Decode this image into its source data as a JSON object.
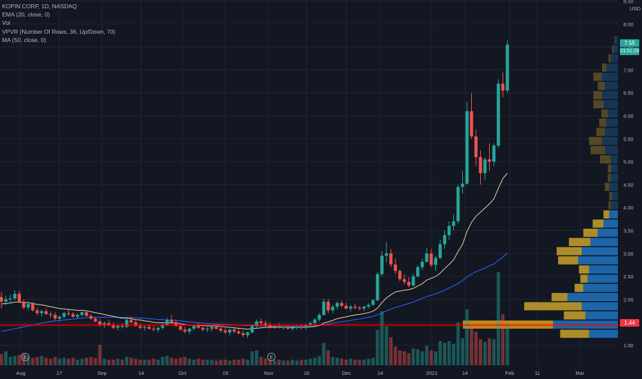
{
  "legend": {
    "symbol": "KOPIN CORP, 1D, NASDAQ",
    "ema": "EMA (20, close, 0)",
    "vol": "Vol",
    "vpvr": "VPVR (Number Of Rows, 36, Up/Down, 70)",
    "ma": "MA (50, close, 0)"
  },
  "currency": "USD",
  "last_price_label": "7.55",
  "countdown_label": "01:51:29",
  "hline_label": "1.44",
  "earnings_marker": "E",
  "colors": {
    "background": "#131722",
    "up": "#26a69a",
    "down": "#ef5350",
    "ema": "#e8d8a8",
    "ma": "#2962ff",
    "hline": "#ff0000",
    "vp_up": "#1e6fb8",
    "vp_down": "#c8a22b"
  },
  "chart_data": {
    "type": "candlestick",
    "title": "KOPIN CORP, 1D, NASDAQ",
    "ylim": [
      0.6,
      8.5
    ],
    "y_ticks": [
      "1.00",
      "1.50",
      "2.00",
      "2.50",
      "3.00",
      "3.50",
      "4.00",
      "4.50",
      "5.00",
      "5.50",
      "6.00",
      "6.50",
      "7.00",
      "7.50",
      "8.00",
      "8.50"
    ],
    "x_ticks": [
      "Aug",
      "17",
      "Sep",
      "14",
      "Oct",
      "19",
      "Nov",
      "16",
      "Dec",
      "14",
      "2021",
      "14",
      "Feb",
      "11",
      "Mar"
    ],
    "grid": true,
    "horizontal_line": 1.44,
    "earnings_events": [
      "2020-08-05",
      "2020-11-04"
    ],
    "candles": [
      [
        2.05,
        2.16,
        1.8,
        1.95
      ],
      [
        1.95,
        2.08,
        1.87,
        2.0
      ],
      [
        2.0,
        2.1,
        1.9,
        2.02
      ],
      [
        2.02,
        2.2,
        1.98,
        2.12
      ],
      [
        2.12,
        2.18,
        1.92,
        1.95
      ],
      [
        1.95,
        2.0,
        1.78,
        1.82
      ],
      [
        1.82,
        1.95,
        1.76,
        1.9
      ],
      [
        1.9,
        1.94,
        1.74,
        1.76
      ],
      [
        1.76,
        1.82,
        1.65,
        1.7
      ],
      [
        1.7,
        1.78,
        1.62,
        1.74
      ],
      [
        1.74,
        1.8,
        1.66,
        1.68
      ],
      [
        1.68,
        1.74,
        1.6,
        1.66
      ],
      [
        1.66,
        1.72,
        1.55,
        1.58
      ],
      [
        1.58,
        1.64,
        1.52,
        1.62
      ],
      [
        1.62,
        1.72,
        1.58,
        1.7
      ],
      [
        1.7,
        1.78,
        1.64,
        1.68
      ],
      [
        1.68,
        1.72,
        1.6,
        1.62
      ],
      [
        1.62,
        1.7,
        1.58,
        1.66
      ],
      [
        1.66,
        1.74,
        1.62,
        1.72
      ],
      [
        1.72,
        1.76,
        1.62,
        1.64
      ],
      [
        1.64,
        1.68,
        1.55,
        1.58
      ],
      [
        1.58,
        1.62,
        1.5,
        1.52
      ],
      [
        1.52,
        1.58,
        1.4,
        1.45
      ],
      [
        1.45,
        1.52,
        1.38,
        1.48
      ],
      [
        1.48,
        1.55,
        1.42,
        1.44
      ],
      [
        1.44,
        1.5,
        1.35,
        1.38
      ],
      [
        1.38,
        1.46,
        1.32,
        1.42
      ],
      [
        1.42,
        1.48,
        1.36,
        1.4
      ],
      [
        1.4,
        1.58,
        1.38,
        1.55
      ],
      [
        1.55,
        1.62,
        1.48,
        1.5
      ],
      [
        1.5,
        1.56,
        1.4,
        1.42
      ],
      [
        1.42,
        1.48,
        1.35,
        1.38
      ],
      [
        1.38,
        1.44,
        1.32,
        1.4
      ],
      [
        1.4,
        1.46,
        1.34,
        1.36
      ],
      [
        1.36,
        1.42,
        1.3,
        1.34
      ],
      [
        1.34,
        1.4,
        1.28,
        1.38
      ],
      [
        1.38,
        1.48,
        1.34,
        1.45
      ],
      [
        1.45,
        1.6,
        1.42,
        1.55
      ],
      [
        1.55,
        1.66,
        1.46,
        1.5
      ],
      [
        1.5,
        1.56,
        1.4,
        1.42
      ],
      [
        1.42,
        1.48,
        1.32,
        1.34
      ],
      [
        1.34,
        1.4,
        1.26,
        1.3
      ],
      [
        1.3,
        1.38,
        1.24,
        1.36
      ],
      [
        1.36,
        1.46,
        1.32,
        1.42
      ],
      [
        1.42,
        1.5,
        1.36,
        1.38
      ],
      [
        1.38,
        1.44,
        1.3,
        1.34
      ],
      [
        1.34,
        1.4,
        1.28,
        1.36
      ],
      [
        1.36,
        1.44,
        1.3,
        1.4
      ],
      [
        1.4,
        1.46,
        1.34,
        1.36
      ],
      [
        1.36,
        1.42,
        1.28,
        1.32
      ],
      [
        1.32,
        1.38,
        1.24,
        1.28
      ],
      [
        1.28,
        1.36,
        1.22,
        1.34
      ],
      [
        1.34,
        1.4,
        1.26,
        1.3
      ],
      [
        1.3,
        1.36,
        1.24,
        1.26
      ],
      [
        1.26,
        1.32,
        1.18,
        1.22
      ],
      [
        1.22,
        1.3,
        1.16,
        1.28
      ],
      [
        1.28,
        1.46,
        1.26,
        1.42
      ],
      [
        1.42,
        1.56,
        1.38,
        1.52
      ],
      [
        1.52,
        1.58,
        1.42,
        1.48
      ],
      [
        1.48,
        1.54,
        1.4,
        1.44
      ],
      [
        1.44,
        1.5,
        1.36,
        1.4
      ],
      [
        1.4,
        1.46,
        1.36,
        1.42
      ],
      [
        1.42,
        1.48,
        1.36,
        1.38
      ],
      [
        1.38,
        1.44,
        1.34,
        1.4
      ],
      [
        1.4,
        1.44,
        1.34,
        1.36
      ],
      [
        1.36,
        1.42,
        1.32,
        1.38
      ],
      [
        1.38,
        1.44,
        1.34,
        1.4
      ],
      [
        1.4,
        1.46,
        1.34,
        1.38
      ],
      [
        1.38,
        1.46,
        1.34,
        1.44
      ],
      [
        1.44,
        1.52,
        1.4,
        1.48
      ],
      [
        1.48,
        1.58,
        1.44,
        1.56
      ],
      [
        1.56,
        1.7,
        1.52,
        1.66
      ],
      [
        1.66,
        2.02,
        1.64,
        1.95
      ],
      [
        1.95,
        2.0,
        1.7,
        1.76
      ],
      [
        1.76,
        1.88,
        1.7,
        1.84
      ],
      [
        1.84,
        1.96,
        1.78,
        1.92
      ],
      [
        1.92,
        1.98,
        1.82,
        1.86
      ],
      [
        1.86,
        1.92,
        1.78,
        1.8
      ],
      [
        1.8,
        1.88,
        1.74,
        1.84
      ],
      [
        1.84,
        1.9,
        1.78,
        1.82
      ],
      [
        1.82,
        1.86,
        1.76,
        1.8
      ],
      [
        1.8,
        1.86,
        1.74,
        1.84
      ],
      [
        1.84,
        1.92,
        1.8,
        1.88
      ],
      [
        1.88,
        2.0,
        1.86,
        1.98
      ],
      [
        1.98,
        2.6,
        1.96,
        2.55
      ],
      [
        2.55,
        3.05,
        2.5,
        2.95
      ],
      [
        2.95,
        3.25,
        2.8,
        3.0
      ],
      [
        3.0,
        3.1,
        2.7,
        2.76
      ],
      [
        2.76,
        2.9,
        2.55,
        2.62
      ],
      [
        2.62,
        2.66,
        2.4,
        2.44
      ],
      [
        2.44,
        2.55,
        2.32,
        2.38
      ],
      [
        2.38,
        2.48,
        2.26,
        2.3
      ],
      [
        2.3,
        2.55,
        2.28,
        2.5
      ],
      [
        2.5,
        2.75,
        2.48,
        2.7
      ],
      [
        2.7,
        2.88,
        2.64,
        2.82
      ],
      [
        2.82,
        3.12,
        2.8,
        3.0
      ],
      [
        3.0,
        3.1,
        2.7,
        2.75
      ],
      [
        2.75,
        2.95,
        2.62,
        2.9
      ],
      [
        2.9,
        3.3,
        2.88,
        3.2
      ],
      [
        3.2,
        3.5,
        3.1,
        3.4
      ],
      [
        3.4,
        3.7,
        3.3,
        3.6
      ],
      [
        3.6,
        3.85,
        3.5,
        3.7
      ],
      [
        3.7,
        4.5,
        3.65,
        4.45
      ],
      [
        4.45,
        4.8,
        4.3,
        4.52
      ],
      [
        4.52,
        6.3,
        4.5,
        6.1
      ],
      [
        6.1,
        6.5,
        5.5,
        5.55
      ],
      [
        5.55,
        5.7,
        4.9,
        5.1
      ],
      [
        5.1,
        5.25,
        4.5,
        4.75
      ],
      [
        4.75,
        5.1,
        4.6,
        5.05
      ],
      [
        5.05,
        5.4,
        4.8,
        5.0
      ],
      [
        5.0,
        5.4,
        4.9,
        5.35
      ],
      [
        5.35,
        6.8,
        5.3,
        6.7
      ],
      [
        6.7,
        6.95,
        6.4,
        6.55
      ],
      [
        6.55,
        7.65,
        6.5,
        7.55
      ]
    ],
    "volume": [
      1.2,
      1.5,
      0.9,
      1.0,
      1.1,
      1.3,
      1.0,
      0.8,
      0.9,
      1.0,
      0.8,
      0.7,
      0.9,
      0.7,
      0.8,
      0.7,
      0.8,
      0.6,
      0.7,
      0.8,
      0.9,
      0.8,
      2.2,
      0.7,
      0.6,
      0.6,
      0.7,
      0.6,
      0.9,
      0.8,
      0.7,
      0.6,
      0.6,
      0.6,
      0.7,
      0.6,
      0.9,
      1.0,
      0.8,
      0.7,
      0.8,
      0.9,
      0.7,
      0.6,
      0.7,
      0.6,
      0.6,
      0.6,
      0.5,
      0.6,
      0.6,
      0.5,
      0.6,
      0.6,
      0.7,
      0.6,
      1.5,
      1.6,
      0.9,
      0.7,
      0.6,
      0.5,
      0.6,
      0.5,
      0.5,
      0.6,
      0.5,
      0.6,
      0.6,
      0.7,
      0.8,
      1.0,
      2.4,
      1.6,
      0.9,
      0.8,
      0.7,
      0.6,
      0.7,
      0.6,
      0.6,
      0.6,
      0.7,
      0.8,
      3.8,
      5.8,
      4.2,
      3.0,
      2.0,
      1.6,
      1.5,
      1.3,
      1.8,
      1.7,
      1.5,
      2.1,
      1.6,
      1.5,
      2.6,
      2.4,
      2.6,
      2.3,
      4.6,
      2.9,
      6.0,
      4.1,
      3.6,
      2.8,
      2.5,
      2.9,
      2.8,
      10.0,
      5.5,
      4.4
    ],
    "ema20": [
      1.9,
      1.91,
      1.92,
      1.94,
      1.94,
      1.93,
      1.93,
      1.91,
      1.89,
      1.88,
      1.86,
      1.84,
      1.82,
      1.8,
      1.79,
      1.78,
      1.77,
      1.76,
      1.76,
      1.75,
      1.73,
      1.71,
      1.69,
      1.67,
      1.65,
      1.63,
      1.61,
      1.59,
      1.59,
      1.58,
      1.56,
      1.55,
      1.53,
      1.52,
      1.5,
      1.49,
      1.49,
      1.49,
      1.49,
      1.48,
      1.47,
      1.45,
      1.44,
      1.44,
      1.43,
      1.43,
      1.42,
      1.42,
      1.42,
      1.41,
      1.4,
      1.39,
      1.38,
      1.37,
      1.36,
      1.35,
      1.36,
      1.37,
      1.38,
      1.39,
      1.39,
      1.39,
      1.39,
      1.39,
      1.39,
      1.39,
      1.39,
      1.39,
      1.39,
      1.4,
      1.41,
      1.43,
      1.48,
      1.51,
      1.54,
      1.58,
      1.6,
      1.62,
      1.64,
      1.66,
      1.67,
      1.69,
      1.71,
      1.74,
      1.81,
      1.93,
      2.03,
      2.1,
      2.16,
      2.18,
      2.2,
      2.21,
      2.24,
      2.29,
      2.34,
      2.42,
      2.46,
      2.5,
      2.57,
      2.67,
      2.76,
      2.86,
      3.04,
      3.2,
      3.48,
      3.68,
      3.81,
      3.9,
      3.99,
      4.08,
      4.19,
      4.42,
      4.63,
      4.75
    ],
    "ma50": [
      1.3,
      1.32,
      1.34,
      1.36,
      1.38,
      1.4,
      1.42,
      1.44,
      1.46,
      1.48,
      1.5,
      1.52,
      1.53,
      1.54,
      1.55,
      1.56,
      1.57,
      1.58,
      1.59,
      1.6,
      1.6,
      1.61,
      1.61,
      1.61,
      1.61,
      1.61,
      1.61,
      1.61,
      1.61,
      1.6,
      1.6,
      1.59,
      1.59,
      1.58,
      1.57,
      1.56,
      1.56,
      1.55,
      1.55,
      1.54,
      1.53,
      1.52,
      1.51,
      1.5,
      1.49,
      1.48,
      1.47,
      1.47,
      1.46,
      1.46,
      1.45,
      1.45,
      1.44,
      1.44,
      1.43,
      1.43,
      1.43,
      1.42,
      1.42,
      1.42,
      1.41,
      1.41,
      1.41,
      1.41,
      1.41,
      1.41,
      1.41,
      1.41,
      1.41,
      1.41,
      1.42,
      1.43,
      1.45,
      1.46,
      1.48,
      1.5,
      1.51,
      1.53,
      1.54,
      1.56,
      1.57,
      1.59,
      1.61,
      1.63,
      1.66,
      1.7,
      1.75,
      1.79,
      1.82,
      1.85,
      1.88,
      1.91,
      1.94,
      1.98,
      2.02,
      2.06,
      2.09,
      2.12,
      2.16,
      2.2,
      2.25,
      2.29,
      2.35,
      2.41,
      2.49,
      2.55,
      2.6,
      2.64,
      2.68,
      2.73,
      2.77,
      2.85,
      2.92,
      3.0
    ],
    "volume_profile": {
      "price_levels": [
        1.25,
        1.45,
        1.65,
        1.85,
        2.05,
        2.25,
        2.45,
        2.65,
        2.85,
        3.05,
        3.25,
        3.45,
        3.65,
        3.85,
        4.05,
        4.25,
        4.45,
        4.65,
        4.85,
        5.05,
        5.25,
        5.45,
        5.65,
        5.85,
        6.05,
        6.25,
        6.45,
        6.65,
        6.85,
        7.05,
        7.25,
        7.45,
        7.65
      ],
      "up": [
        40,
        90,
        45,
        50,
        70,
        48,
        42,
        40,
        55,
        50,
        38,
        28,
        20,
        12,
        10,
        8,
        12,
        10,
        9,
        10,
        18,
        22,
        18,
        16,
        14,
        20,
        22,
        18,
        22,
        16,
        10,
        6,
        4
      ],
      "down": [
        40,
        125,
        30,
        80,
        22,
        12,
        10,
        14,
        28,
        35,
        30,
        20,
        15,
        8,
        3,
        4,
        6,
        4,
        5,
        15,
        20,
        18,
        12,
        10,
        9,
        14,
        12,
        10,
        12,
        6,
        3,
        2,
        1
      ]
    }
  }
}
